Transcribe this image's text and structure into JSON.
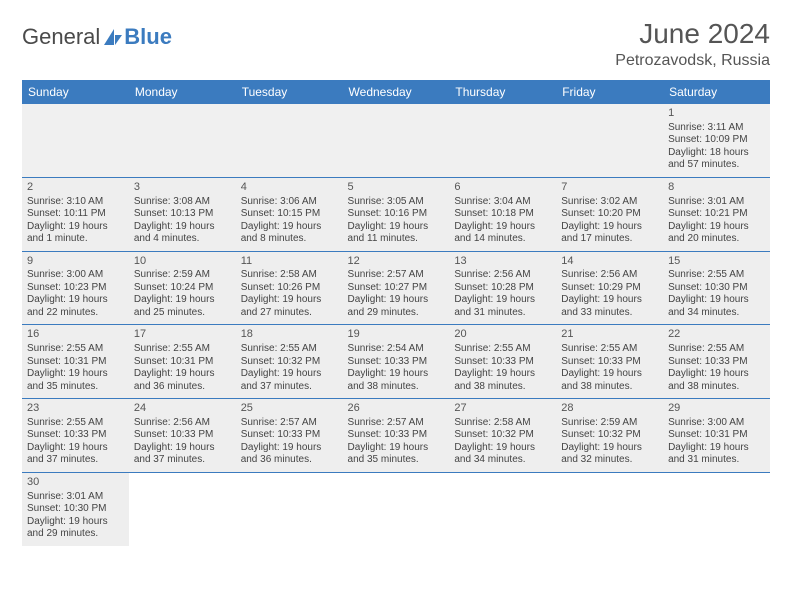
{
  "brand": {
    "part1": "General",
    "part2": "Blue"
  },
  "title": "June 2024",
  "location": "Petrozavodsk, Russia",
  "day_headers": [
    "Sunday",
    "Monday",
    "Tuesday",
    "Wednesday",
    "Thursday",
    "Friday",
    "Saturday"
  ],
  "colors": {
    "header_bg": "#3b7bbf",
    "header_text": "#ffffff",
    "gray_cell": "#eeeeee",
    "body_text": "#444444",
    "page_bg": "#ffffff"
  },
  "weeks": [
    [
      null,
      null,
      null,
      null,
      null,
      null,
      {
        "n": "1",
        "sr": "Sunrise: 3:11 AM",
        "ss": "Sunset: 10:09 PM",
        "d1": "Daylight: 18 hours",
        "d2": "and 57 minutes."
      }
    ],
    [
      {
        "n": "2",
        "sr": "Sunrise: 3:10 AM",
        "ss": "Sunset: 10:11 PM",
        "d1": "Daylight: 19 hours",
        "d2": "and 1 minute."
      },
      {
        "n": "3",
        "sr": "Sunrise: 3:08 AM",
        "ss": "Sunset: 10:13 PM",
        "d1": "Daylight: 19 hours",
        "d2": "and 4 minutes."
      },
      {
        "n": "4",
        "sr": "Sunrise: 3:06 AM",
        "ss": "Sunset: 10:15 PM",
        "d1": "Daylight: 19 hours",
        "d2": "and 8 minutes."
      },
      {
        "n": "5",
        "sr": "Sunrise: 3:05 AM",
        "ss": "Sunset: 10:16 PM",
        "d1": "Daylight: 19 hours",
        "d2": "and 11 minutes."
      },
      {
        "n": "6",
        "sr": "Sunrise: 3:04 AM",
        "ss": "Sunset: 10:18 PM",
        "d1": "Daylight: 19 hours",
        "d2": "and 14 minutes."
      },
      {
        "n": "7",
        "sr": "Sunrise: 3:02 AM",
        "ss": "Sunset: 10:20 PM",
        "d1": "Daylight: 19 hours",
        "d2": "and 17 minutes."
      },
      {
        "n": "8",
        "sr": "Sunrise: 3:01 AM",
        "ss": "Sunset: 10:21 PM",
        "d1": "Daylight: 19 hours",
        "d2": "and 20 minutes."
      }
    ],
    [
      {
        "n": "9",
        "sr": "Sunrise: 3:00 AM",
        "ss": "Sunset: 10:23 PM",
        "d1": "Daylight: 19 hours",
        "d2": "and 22 minutes."
      },
      {
        "n": "10",
        "sr": "Sunrise: 2:59 AM",
        "ss": "Sunset: 10:24 PM",
        "d1": "Daylight: 19 hours",
        "d2": "and 25 minutes."
      },
      {
        "n": "11",
        "sr": "Sunrise: 2:58 AM",
        "ss": "Sunset: 10:26 PM",
        "d1": "Daylight: 19 hours",
        "d2": "and 27 minutes."
      },
      {
        "n": "12",
        "sr": "Sunrise: 2:57 AM",
        "ss": "Sunset: 10:27 PM",
        "d1": "Daylight: 19 hours",
        "d2": "and 29 minutes."
      },
      {
        "n": "13",
        "sr": "Sunrise: 2:56 AM",
        "ss": "Sunset: 10:28 PM",
        "d1": "Daylight: 19 hours",
        "d2": "and 31 minutes."
      },
      {
        "n": "14",
        "sr": "Sunrise: 2:56 AM",
        "ss": "Sunset: 10:29 PM",
        "d1": "Daylight: 19 hours",
        "d2": "and 33 minutes."
      },
      {
        "n": "15",
        "sr": "Sunrise: 2:55 AM",
        "ss": "Sunset: 10:30 PM",
        "d1": "Daylight: 19 hours",
        "d2": "and 34 minutes."
      }
    ],
    [
      {
        "n": "16",
        "sr": "Sunrise: 2:55 AM",
        "ss": "Sunset: 10:31 PM",
        "d1": "Daylight: 19 hours",
        "d2": "and 35 minutes."
      },
      {
        "n": "17",
        "sr": "Sunrise: 2:55 AM",
        "ss": "Sunset: 10:31 PM",
        "d1": "Daylight: 19 hours",
        "d2": "and 36 minutes."
      },
      {
        "n": "18",
        "sr": "Sunrise: 2:55 AM",
        "ss": "Sunset: 10:32 PM",
        "d1": "Daylight: 19 hours",
        "d2": "and 37 minutes."
      },
      {
        "n": "19",
        "sr": "Sunrise: 2:54 AM",
        "ss": "Sunset: 10:33 PM",
        "d1": "Daylight: 19 hours",
        "d2": "and 38 minutes."
      },
      {
        "n": "20",
        "sr": "Sunrise: 2:55 AM",
        "ss": "Sunset: 10:33 PM",
        "d1": "Daylight: 19 hours",
        "d2": "and 38 minutes."
      },
      {
        "n": "21",
        "sr": "Sunrise: 2:55 AM",
        "ss": "Sunset: 10:33 PM",
        "d1": "Daylight: 19 hours",
        "d2": "and 38 minutes."
      },
      {
        "n": "22",
        "sr": "Sunrise: 2:55 AM",
        "ss": "Sunset: 10:33 PM",
        "d1": "Daylight: 19 hours",
        "d2": "and 38 minutes."
      }
    ],
    [
      {
        "n": "23",
        "sr": "Sunrise: 2:55 AM",
        "ss": "Sunset: 10:33 PM",
        "d1": "Daylight: 19 hours",
        "d2": "and 37 minutes."
      },
      {
        "n": "24",
        "sr": "Sunrise: 2:56 AM",
        "ss": "Sunset: 10:33 PM",
        "d1": "Daylight: 19 hours",
        "d2": "and 37 minutes."
      },
      {
        "n": "25",
        "sr": "Sunrise: 2:57 AM",
        "ss": "Sunset: 10:33 PM",
        "d1": "Daylight: 19 hours",
        "d2": "and 36 minutes."
      },
      {
        "n": "26",
        "sr": "Sunrise: 2:57 AM",
        "ss": "Sunset: 10:33 PM",
        "d1": "Daylight: 19 hours",
        "d2": "and 35 minutes."
      },
      {
        "n": "27",
        "sr": "Sunrise: 2:58 AM",
        "ss": "Sunset: 10:32 PM",
        "d1": "Daylight: 19 hours",
        "d2": "and 34 minutes."
      },
      {
        "n": "28",
        "sr": "Sunrise: 2:59 AM",
        "ss": "Sunset: 10:32 PM",
        "d1": "Daylight: 19 hours",
        "d2": "and 32 minutes."
      },
      {
        "n": "29",
        "sr": "Sunrise: 3:00 AM",
        "ss": "Sunset: 10:31 PM",
        "d1": "Daylight: 19 hours",
        "d2": "and 31 minutes."
      }
    ],
    [
      {
        "n": "30",
        "sr": "Sunrise: 3:01 AM",
        "ss": "Sunset: 10:30 PM",
        "d1": "Daylight: 19 hours",
        "d2": "and 29 minutes."
      },
      null,
      null,
      null,
      null,
      null,
      null
    ]
  ]
}
